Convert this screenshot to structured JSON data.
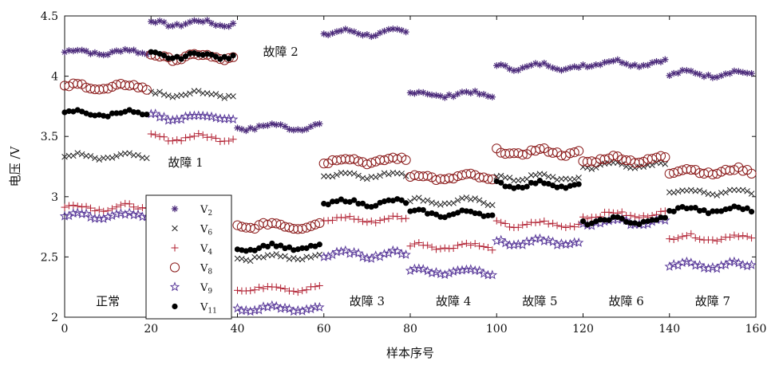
{
  "chart_data": {
    "type": "scatter",
    "title": "",
    "xlabel": "样本序号",
    "ylabel": "电压 /V",
    "xlim": [
      0,
      160
    ],
    "ylim": [
      2,
      4.5
    ],
    "x_ticks": [
      "0",
      "20",
      "40",
      "60",
      "80",
      "100",
      "120",
      "140",
      "160"
    ],
    "y_ticks": [
      "2",
      "2.5",
      "3",
      "3.5",
      "4",
      "4.5"
    ],
    "grid": false,
    "legend_position": "left-center",
    "colors": {
      "V2": "#4b2a7a",
      "V6": "#222222",
      "V4": "#b01c2e",
      "V8": "#8b1a1a",
      "V9": "#5a3a9a",
      "V11": "#000000"
    },
    "series": [
      {
        "name": "V2",
        "legend_base": "V",
        "legend_sub": "2",
        "marker": "asterisk",
        "segments": [
          {
            "x_start": 0,
            "x_end": 20,
            "y": 4.2
          },
          {
            "x_start": 20,
            "x_end": 40,
            "y": 4.44
          },
          {
            "x_start": 40,
            "x_end": 60,
            "y": 3.58
          },
          {
            "x_start": 60,
            "x_end": 80,
            "y": 4.36
          },
          {
            "x_start": 80,
            "x_end": 100,
            "y": 3.85
          },
          {
            "x_start": 100,
            "x_end": 120,
            "y": 4.08
          },
          {
            "x_start": 120,
            "x_end": 140,
            "y": 4.11
          },
          {
            "x_start": 140,
            "x_end": 160,
            "y": 4.02
          }
        ]
      },
      {
        "name": "V6",
        "legend_base": "V",
        "legend_sub": "6",
        "marker": "x",
        "segments": [
          {
            "x_start": 0,
            "x_end": 20,
            "y": 3.33
          },
          {
            "x_start": 20,
            "x_end": 40,
            "y": 3.85
          },
          {
            "x_start": 40,
            "x_end": 60,
            "y": 2.5
          },
          {
            "x_start": 60,
            "x_end": 80,
            "y": 3.18
          },
          {
            "x_start": 80,
            "x_end": 100,
            "y": 2.96
          },
          {
            "x_start": 100,
            "x_end": 120,
            "y": 3.16
          },
          {
            "x_start": 120,
            "x_end": 140,
            "y": 3.26
          },
          {
            "x_start": 140,
            "x_end": 160,
            "y": 3.04
          }
        ]
      },
      {
        "name": "V4",
        "legend_base": "V",
        "legend_sub": "4",
        "marker": "plus",
        "segments": [
          {
            "x_start": 0,
            "x_end": 20,
            "y": 2.91
          },
          {
            "x_start": 20,
            "x_end": 40,
            "y": 3.49
          },
          {
            "x_start": 40,
            "x_end": 60,
            "y": 2.24
          },
          {
            "x_start": 60,
            "x_end": 80,
            "y": 2.81
          },
          {
            "x_start": 80,
            "x_end": 100,
            "y": 2.59
          },
          {
            "x_start": 100,
            "x_end": 120,
            "y": 2.77
          },
          {
            "x_start": 120,
            "x_end": 140,
            "y": 2.85
          },
          {
            "x_start": 140,
            "x_end": 160,
            "y": 2.66
          }
        ]
      },
      {
        "name": "V8",
        "legend_base": "V",
        "legend_sub": "8",
        "marker": "circle",
        "segments": [
          {
            "x_start": 0,
            "x_end": 20,
            "y": 3.91
          },
          {
            "x_start": 20,
            "x_end": 40,
            "y": 4.16
          },
          {
            "x_start": 40,
            "x_end": 60,
            "y": 2.76
          },
          {
            "x_start": 60,
            "x_end": 80,
            "y": 3.3
          },
          {
            "x_start": 80,
            "x_end": 100,
            "y": 3.16
          },
          {
            "x_start": 100,
            "x_end": 120,
            "y": 3.37
          },
          {
            "x_start": 120,
            "x_end": 140,
            "y": 3.31
          },
          {
            "x_start": 140,
            "x_end": 160,
            "y": 3.21
          }
        ]
      },
      {
        "name": "V9",
        "legend_base": "V",
        "legend_sub": "9",
        "marker": "star",
        "segments": [
          {
            "x_start": 0,
            "x_end": 20,
            "y": 2.84
          },
          {
            "x_start": 20,
            "x_end": 40,
            "y": 3.66
          },
          {
            "x_start": 40,
            "x_end": 60,
            "y": 2.07
          },
          {
            "x_start": 60,
            "x_end": 80,
            "y": 2.52
          },
          {
            "x_start": 80,
            "x_end": 100,
            "y": 2.38
          },
          {
            "x_start": 100,
            "x_end": 120,
            "y": 2.62
          },
          {
            "x_start": 120,
            "x_end": 140,
            "y": 2.79
          },
          {
            "x_start": 140,
            "x_end": 160,
            "y": 2.43
          }
        ]
      },
      {
        "name": "V11",
        "legend_base": "V",
        "legend_sub": "11",
        "marker": "dot",
        "segments": [
          {
            "x_start": 0,
            "x_end": 20,
            "y": 3.69
          },
          {
            "x_start": 20,
            "x_end": 40,
            "y": 4.17
          },
          {
            "x_start": 40,
            "x_end": 60,
            "y": 2.58
          },
          {
            "x_start": 60,
            "x_end": 80,
            "y": 2.95
          },
          {
            "x_start": 80,
            "x_end": 100,
            "y": 2.86
          },
          {
            "x_start": 100,
            "x_end": 120,
            "y": 3.1
          },
          {
            "x_start": 120,
            "x_end": 140,
            "y": 2.8
          },
          {
            "x_start": 140,
            "x_end": 160,
            "y": 2.89
          }
        ]
      }
    ],
    "annotations": [
      {
        "text": "正常",
        "x": 10,
        "y": 2.1
      },
      {
        "text": "故障 1",
        "x": 28,
        "y": 3.25
      },
      {
        "text": "故障 2",
        "x": 50,
        "y": 4.17
      },
      {
        "text": "故障 3",
        "x": 70,
        "y": 2.1
      },
      {
        "text": "故障 4",
        "x": 90,
        "y": 2.1
      },
      {
        "text": "故障 5",
        "x": 110,
        "y": 2.1
      },
      {
        "text": "故障 6",
        "x": 130,
        "y": 2.1
      },
      {
        "text": "故障 7",
        "x": 150,
        "y": 2.1
      }
    ]
  }
}
